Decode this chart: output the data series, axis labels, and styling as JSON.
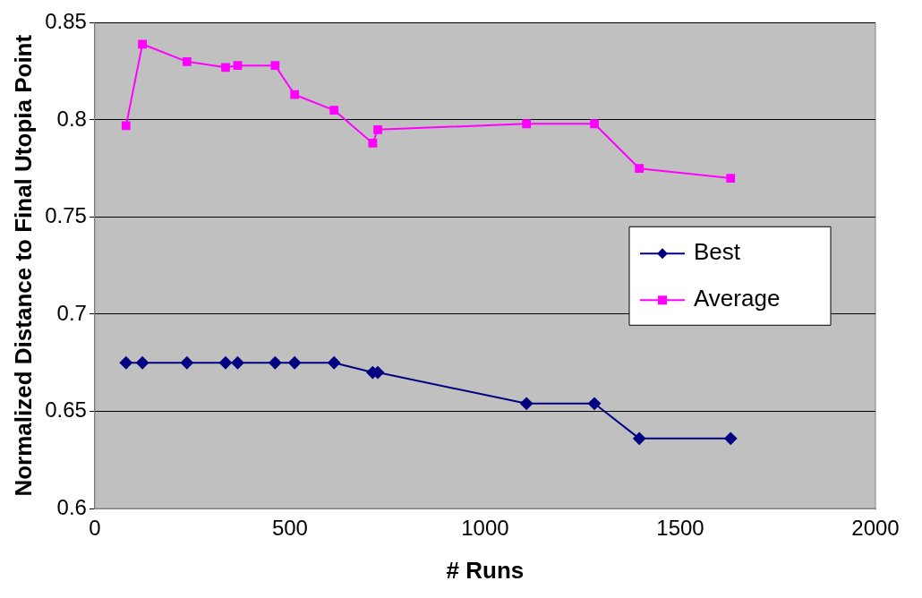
{
  "chart_data": {
    "type": "line",
    "xlabel": "# Runs",
    "ylabel": "Normalized Distance to Final Utopia Point",
    "xlim": [
      0,
      2000
    ],
    "xticks": [
      0,
      500,
      1000,
      1500,
      2000
    ],
    "ylim": [
      0.6,
      0.85
    ],
    "yticks": [
      0.6,
      0.65,
      0.7,
      0.75,
      0.8,
      0.85
    ],
    "grid": "y",
    "legend": "right",
    "series": [
      {
        "name": "Best",
        "color": "#000080",
        "marker": "diamond",
        "x": [
          80,
          122,
          236,
          335,
          366,
          462,
          512,
          613,
          712,
          725,
          1106,
          1280,
          1395,
          1629
        ],
        "values": [
          0.675,
          0.675,
          0.675,
          0.675,
          0.675,
          0.675,
          0.675,
          0.675,
          0.67,
          0.67,
          0.654,
          0.654,
          0.636,
          0.636
        ]
      },
      {
        "name": "Average",
        "color": "#ff00ff",
        "marker": "square",
        "x": [
          80,
          122,
          236,
          335,
          366,
          462,
          512,
          613,
          712,
          725,
          1106,
          1280,
          1395,
          1629
        ],
        "values": [
          0.797,
          0.839,
          0.83,
          0.827,
          0.828,
          0.828,
          0.813,
          0.805,
          0.788,
          0.795,
          0.798,
          0.798,
          0.775,
          0.77
        ]
      }
    ]
  }
}
